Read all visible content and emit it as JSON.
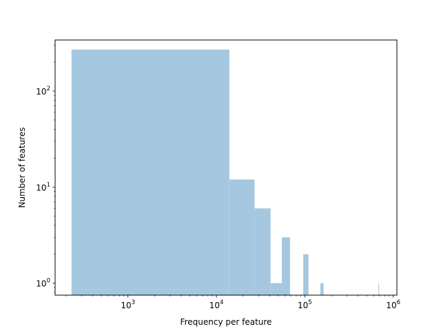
{
  "chart_data": {
    "type": "bar",
    "xlabel": "Frequency per feature",
    "ylabel": "Number of features",
    "xscale": "log",
    "yscale": "log",
    "xlim": [
      150,
      1100000
    ],
    "ylim": [
      0.75,
      340
    ],
    "grid": false,
    "bar_color": "#a5c8e0",
    "bars": [
      {
        "x0": 230,
        "x1": 14000,
        "count": 270
      },
      {
        "x0": 14000,
        "x1": 27000,
        "count": 12
      },
      {
        "x0": 27000,
        "x1": 41000,
        "count": 6
      },
      {
        "x0": 41000,
        "x1": 55000,
        "count": 1
      },
      {
        "x0": 55000,
        "x1": 68000,
        "count": 3
      },
      {
        "x0": 96000,
        "x1": 110000,
        "count": 2
      },
      {
        "x0": 150000,
        "x1": 163000,
        "count": 1
      },
      {
        "x0": 680000,
        "x1": 690000,
        "count": 1
      }
    ],
    "x_ticks": [
      {
        "value": 1000,
        "base": "10",
        "exp": "3"
      },
      {
        "value": 10000,
        "base": "10",
        "exp": "4"
      },
      {
        "value": 100000,
        "base": "10",
        "exp": "5"
      },
      {
        "value": 1000000,
        "base": "10",
        "exp": "6"
      }
    ],
    "y_ticks": [
      {
        "value": 1,
        "base": "10",
        "exp": "0"
      },
      {
        "value": 10,
        "base": "10",
        "exp": "1"
      },
      {
        "value": 100,
        "base": "10",
        "exp": "2"
      }
    ]
  }
}
